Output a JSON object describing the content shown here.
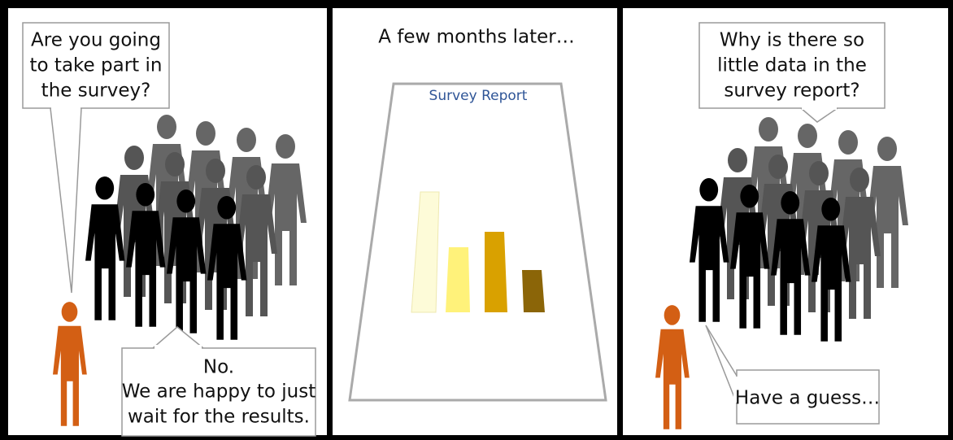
{
  "panels": [
    {
      "speech": [
        "Are you going",
        "to take part in",
        "the survey?"
      ],
      "reply": [
        "No.",
        "We are happy to just",
        "wait for the results."
      ]
    },
    {
      "caption": "A few months later…",
      "report_title": "Survey Report"
    },
    {
      "speech": [
        "Why is there so",
        "little data in the",
        "survey report?"
      ],
      "reply": [
        "Have a guess…"
      ]
    }
  ]
}
